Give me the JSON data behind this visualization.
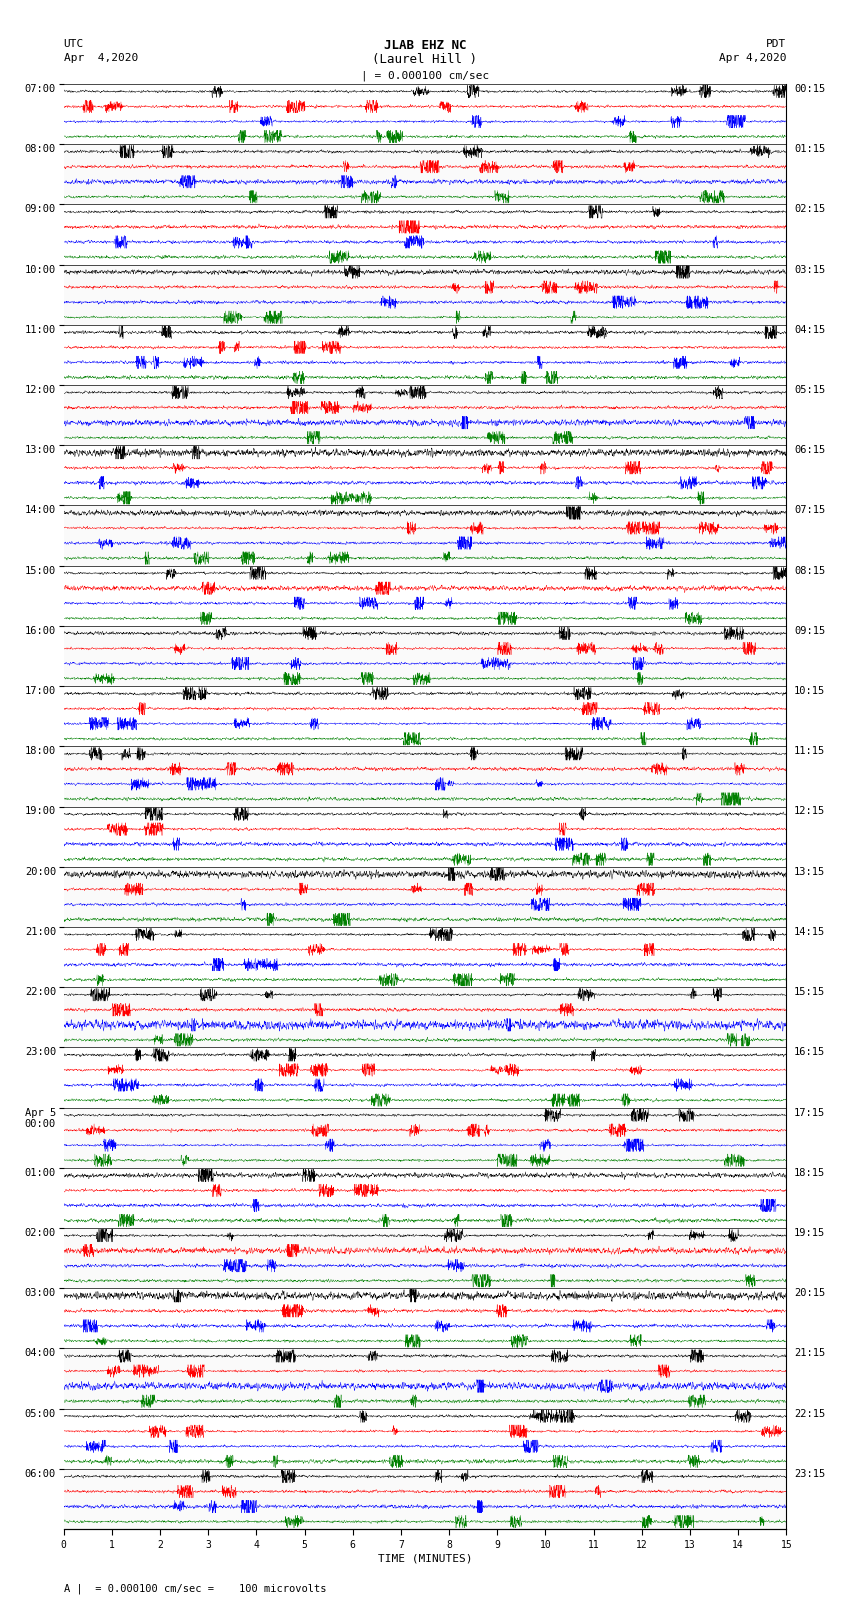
{
  "title_line1": "JLAB EHZ NC",
  "title_line2": "(Laurel Hill )",
  "left_header_line1": "UTC",
  "left_header_line2": "Apr  4,2020",
  "right_header_line1": "PDT",
  "right_header_line2": "Apr 4,2020",
  "scale_label": "| = 0.000100 cm/sec",
  "footer_label": "A |  = 0.000100 cm/sec =    100 microvolts",
  "xlabel": "TIME (MINUTES)",
  "xticks": [
    0,
    1,
    2,
    3,
    4,
    5,
    6,
    7,
    8,
    9,
    10,
    11,
    12,
    13,
    14,
    15
  ],
  "utc_labels": [
    "07:00",
    "08:00",
    "09:00",
    "10:00",
    "11:00",
    "12:00",
    "13:00",
    "14:00",
    "15:00",
    "16:00",
    "17:00",
    "18:00",
    "19:00",
    "20:00",
    "21:00",
    "22:00",
    "23:00",
    "Apr 5\n00:00",
    "01:00",
    "02:00",
    "03:00",
    "04:00",
    "05:00",
    "06:00"
  ],
  "pdt_labels": [
    "00:15",
    "01:15",
    "02:15",
    "03:15",
    "04:15",
    "05:15",
    "06:15",
    "07:15",
    "08:15",
    "09:15",
    "10:15",
    "11:15",
    "12:15",
    "13:15",
    "14:15",
    "15:15",
    "16:15",
    "17:15",
    "18:15",
    "19:15",
    "20:15",
    "21:15",
    "22:15",
    "23:15"
  ],
  "colors": [
    "black",
    "red",
    "blue",
    "green"
  ],
  "n_rows": 96,
  "n_samples": 3600,
  "fig_width": 8.5,
  "fig_height": 16.13,
  "bg_color": "white",
  "trace_amplitude": 0.42,
  "seed": 42,
  "rows_per_hour": 4,
  "n_hours": 24,
  "linewidth": 0.3
}
